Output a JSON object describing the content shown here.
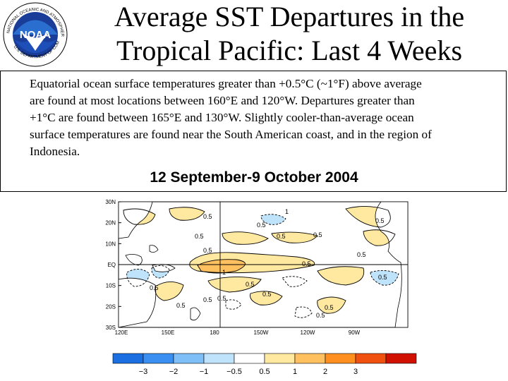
{
  "logo": {
    "name": "NOAA",
    "ring_text": "NATIONAL OCEANIC AND ATMOSPHERIC ADMINISTRATION",
    "ring_text_bottom": "U.S. DEPARTMENT OF COMMERCE"
  },
  "title": {
    "line1": "Average SST Departures in the",
    "line2": "Tropical Pacific: Last 4 Weeks"
  },
  "description": {
    "lines": [
      "Equatorial ocean surface temperatures greater than +0.5°C (~1°F) above average",
      "are found at most locations between 160°E and 120°W. Departures greater than",
      "+1°C are found between 165°E and 130°W. Slightly cooler-than-average ocean",
      "surface temperatures are found near the South American coast, and in the region of",
      "Indonesia."
    ]
  },
  "date_range": "12 September-9 October 2004",
  "map": {
    "y_ticks": [
      "30N",
      "20N",
      "10N",
      "EQ",
      "10S",
      "20S",
      "30S"
    ],
    "x_ticks": [
      "120E",
      "150E",
      "180",
      "150W",
      "120W",
      "90W"
    ],
    "contour_labels": [
      "0.5",
      "1",
      "0.5",
      "0.5",
      "0.5",
      "0.5",
      "0.5",
      "1",
      "0.5",
      "0.5",
      "0.5",
      "0.5",
      "0.5",
      "0.5",
      "0.5",
      "0.5",
      "0.5",
      "0.5",
      "0.5",
      "0.5"
    ],
    "colorbar": {
      "labels": [
        "−3",
        "−2",
        "−1",
        "−0.5",
        "0.5",
        "1",
        "2",
        "3"
      ],
      "colors": [
        "#1b6fe0",
        "#3b8ff0",
        "#7fbff8",
        "#bfe3fb",
        "#ffffff",
        "#ffe8a0",
        "#ffc060",
        "#ff9020",
        "#f05010",
        "#d01000"
      ]
    }
  }
}
